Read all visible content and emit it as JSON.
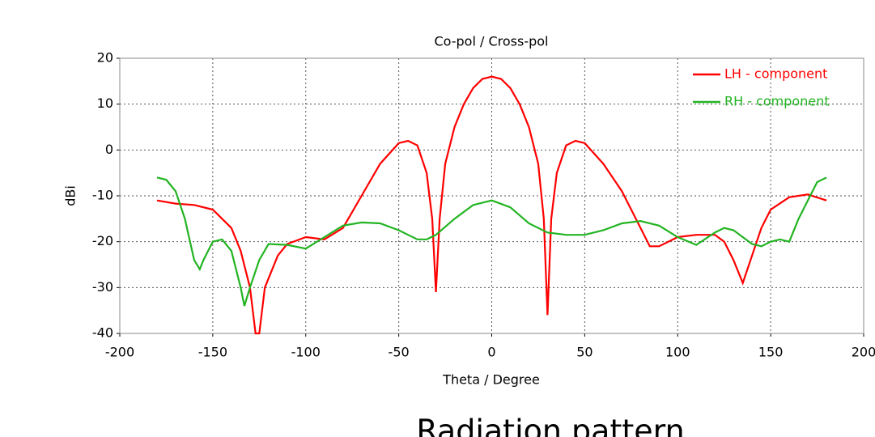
{
  "chart_data": {
    "type": "line",
    "title": "Co-pol / Cross-pol",
    "xlabel": "Theta / Degree",
    "ylabel": "dBi",
    "caption": "Radiation pattern",
    "xlim": [
      -200,
      200
    ],
    "xticks": [
      -200,
      -150,
      -100,
      -50,
      0,
      50,
      100,
      150,
      200
    ],
    "ylim": [
      -40,
      20
    ],
    "yticks": [
      -40,
      -30,
      -20,
      -10,
      0,
      10,
      20
    ],
    "grid": true,
    "legend": "upper right",
    "series": [
      {
        "name": "LH - component",
        "color": "#ff0000",
        "x": [
          -180,
          -170,
          -160,
          -150,
          -140,
          -135,
          -130,
          -127,
          -125,
          -122,
          -115,
          -110,
          -100,
          -90,
          -80,
          -70,
          -60,
          -50,
          -45,
          -40,
          -35,
          -32,
          -30,
          -28,
          -25,
          -20,
          -15,
          -10,
          -5,
          0,
          5,
          10,
          15,
          20,
          25,
          28,
          30,
          32,
          35,
          40,
          45,
          50,
          60,
          70,
          80,
          85,
          90,
          100,
          110,
          120,
          125,
          130,
          135,
          140,
          145,
          150,
          160,
          170,
          180
        ],
        "values": [
          -11,
          -11.7,
          -12,
          -13,
          -17,
          -22,
          -30,
          -40,
          -40,
          -30,
          -23,
          -20.5,
          -19,
          -19.5,
          -17,
          -10,
          -3,
          1.5,
          2,
          1,
          -5,
          -15,
          -31,
          -15,
          -3,
          5,
          10,
          13.5,
          15.5,
          16,
          15.5,
          13.5,
          10,
          5,
          -3,
          -15,
          -36,
          -15,
          -5,
          1,
          2,
          1.5,
          -3,
          -9,
          -17,
          -21,
          -21,
          -19,
          -18.5,
          -18.5,
          -20,
          -24,
          -29,
          -23,
          -17,
          -13,
          -10.3,
          -9.7,
          -11
        ]
      },
      {
        "name": "RH - component",
        "color": "#22b422",
        "x": [
          -180,
          -175,
          -170,
          -165,
          -160,
          -157,
          -155,
          -150,
          -145,
          -140,
          -135,
          -133,
          -130,
          -125,
          -120,
          -110,
          -100,
          -90,
          -80,
          -70,
          -60,
          -50,
          -40,
          -35,
          -30,
          -20,
          -10,
          0,
          10,
          20,
          30,
          40,
          50,
          60,
          70,
          80,
          90,
          100,
          110,
          120,
          125,
          130,
          140,
          145,
          150,
          155,
          160,
          165,
          170,
          175,
          180
        ],
        "values": [
          -6,
          -6.5,
          -9,
          -15,
          -24,
          -26,
          -24,
          -20,
          -19.5,
          -22,
          -30,
          -34,
          -30,
          -24,
          -20.5,
          -20.7,
          -21.5,
          -19,
          -16.5,
          -15.8,
          -16,
          -17.5,
          -19.5,
          -19.5,
          -18.5,
          -15,
          -12,
          -11,
          -12.5,
          -16,
          -18,
          -18.5,
          -18.5,
          -17.5,
          -16,
          -15.5,
          -16.5,
          -19,
          -20.7,
          -18,
          -17,
          -17.5,
          -20.5,
          -21,
          -20,
          -19.5,
          -20,
          -15,
          -11,
          -7,
          -6
        ]
      }
    ]
  }
}
